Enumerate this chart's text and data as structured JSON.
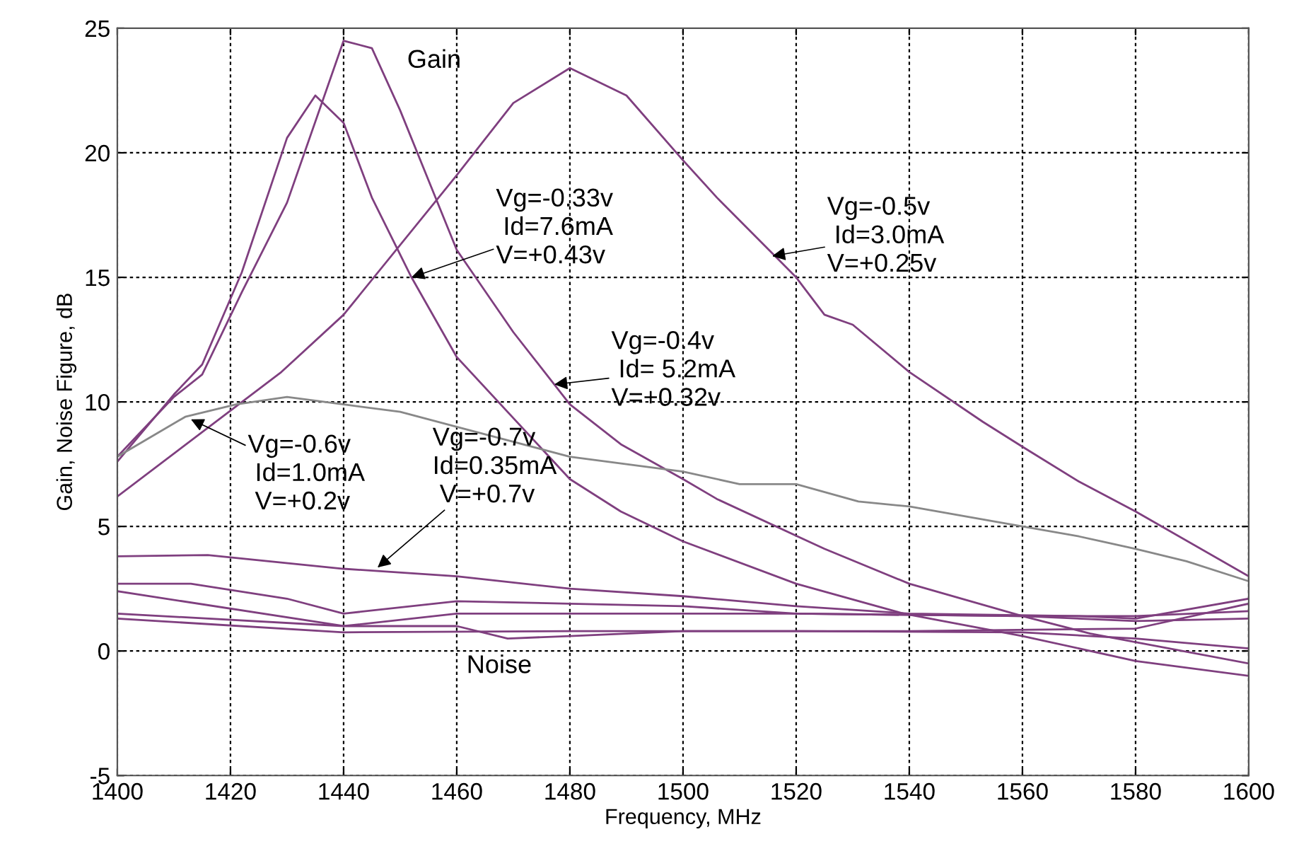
{
  "chart_data": {
    "type": "line",
    "xlabel": "Frequency, MHz",
    "ylabel": "Gain, Noise Figure, dB",
    "xlim": [
      1400,
      1600
    ],
    "ylim": [
      -5,
      25
    ],
    "xticks": [
      1400,
      1420,
      1440,
      1460,
      1480,
      1500,
      1520,
      1540,
      1560,
      1580,
      1600
    ],
    "yticks": [
      -5,
      0,
      5,
      10,
      15,
      20,
      25
    ],
    "grid": true,
    "line_style": "solid",
    "series": [
      {
        "color": "#7f3f7f",
        "x": [
          1400,
          1410,
          1415,
          1422,
          1430,
          1435,
          1440,
          1445,
          1452,
          1460,
          1480,
          1489,
          1500,
          1520,
          1539,
          1560,
          1580,
          1600
        ],
        "values": [
          7.6,
          10.3,
          11.5,
          15.2,
          20.6,
          22.3,
          21.2,
          18.2,
          15.0,
          11.8,
          6.9,
          5.6,
          4.4,
          2.7,
          1.5,
          0.6,
          -0.4,
          -1.0
        ]
      },
      {
        "color": "#7f3f7f",
        "x": [
          1400,
          1410,
          1415,
          1422,
          1430,
          1440,
          1445,
          1450,
          1460,
          1470,
          1480,
          1489,
          1500,
          1506,
          1525,
          1540,
          1560,
          1572,
          1600
        ],
        "values": [
          7.8,
          10.2,
          11.1,
          14.4,
          18.0,
          24.5,
          24.2,
          21.7,
          16.1,
          12.8,
          9.9,
          8.3,
          6.9,
          6.1,
          4.1,
          2.7,
          1.4,
          0.7,
          -0.5
        ]
      },
      {
        "color": "#7f3f7f",
        "x": [
          1400,
          1429,
          1440,
          1460,
          1470,
          1480,
          1490,
          1500,
          1506,
          1520,
          1525,
          1530,
          1540,
          1553,
          1560,
          1570,
          1580,
          1600
        ],
        "values": [
          6.2,
          11.2,
          13.5,
          19.1,
          22.0,
          23.4,
          22.3,
          19.7,
          18.2,
          15.0,
          13.5,
          13.1,
          11.2,
          9.2,
          8.2,
          6.8,
          5.6,
          3.0
        ]
      },
      {
        "color": "#888888",
        "x": [
          1400,
          1412,
          1421,
          1430,
          1440,
          1450,
          1460,
          1480,
          1500,
          1510,
          1520,
          1531,
          1540,
          1560,
          1570,
          1580,
          1589,
          1600
        ],
        "values": [
          7.8,
          9.4,
          9.9,
          10.2,
          9.9,
          9.6,
          9.0,
          7.8,
          7.2,
          6.7,
          6.7,
          6.0,
          5.8,
          5.0,
          4.6,
          4.1,
          3.6,
          2.8
        ]
      },
      {
        "color": "#7f3f7f",
        "x": [
          1400,
          1416,
          1440,
          1460,
          1480,
          1500,
          1520,
          1540,
          1570,
          1580,
          1600
        ],
        "values": [
          3.8,
          3.85,
          3.3,
          3.0,
          2.5,
          2.2,
          1.8,
          1.5,
          1.4,
          1.3,
          2.1
        ]
      },
      {
        "color": "#7f3f7f",
        "x": [
          1400,
          1413,
          1430,
          1440,
          1460,
          1480,
          1500,
          1520,
          1560,
          1580,
          1600
        ],
        "values": [
          2.7,
          2.7,
          2.1,
          1.5,
          2.0,
          1.9,
          1.8,
          1.5,
          1.4,
          1.4,
          1.6
        ]
      },
      {
        "color": "#7f3f7f",
        "x": [
          1400,
          1440,
          1460,
          1480,
          1520,
          1560,
          1580,
          1600
        ],
        "values": [
          2.4,
          1.0,
          1.5,
          1.5,
          1.5,
          1.4,
          1.2,
          1.3
        ]
      },
      {
        "color": "#7f3f7f",
        "x": [
          1400,
          1440,
          1460,
          1469,
          1480,
          1500,
          1540,
          1580,
          1600
        ],
        "values": [
          1.5,
          1.0,
          1.0,
          0.5,
          0.6,
          0.8,
          0.8,
          0.9,
          1.9
        ]
      },
      {
        "color": "#7f3f7f",
        "x": [
          1400,
          1440,
          1480,
          1520,
          1560,
          1580,
          1600
        ],
        "values": [
          1.3,
          0.75,
          0.8,
          0.8,
          0.75,
          0.5,
          0.1
        ]
      }
    ],
    "annotations": [
      "Gain",
      "Noise",
      {
        "text": "Vg=-0.33v\n Id=7.6mA\nV=+0.43v",
        "x": 1452,
        "y": 15.0
      },
      {
        "text": "Vg=-0.5v\n Id=3.0mA\nV=+0.25v",
        "x": 1515.75,
        "y": 15.85
      },
      {
        "text": "Vg=-0.4v\n Id= 5.2mA\nV=+0.32v",
        "x": 1477.25,
        "y": 10.7
      },
      {
        "text": "Vg=-0.6v\n Id=1.0mA\n V=+0.2v",
        "x": 1413,
        "y": 9.3
      },
      {
        "text": "Vg=-0.7v\nId=0.35mA\n V=+0.7v",
        "x": 1446,
        "y": 3.35
      }
    ]
  }
}
